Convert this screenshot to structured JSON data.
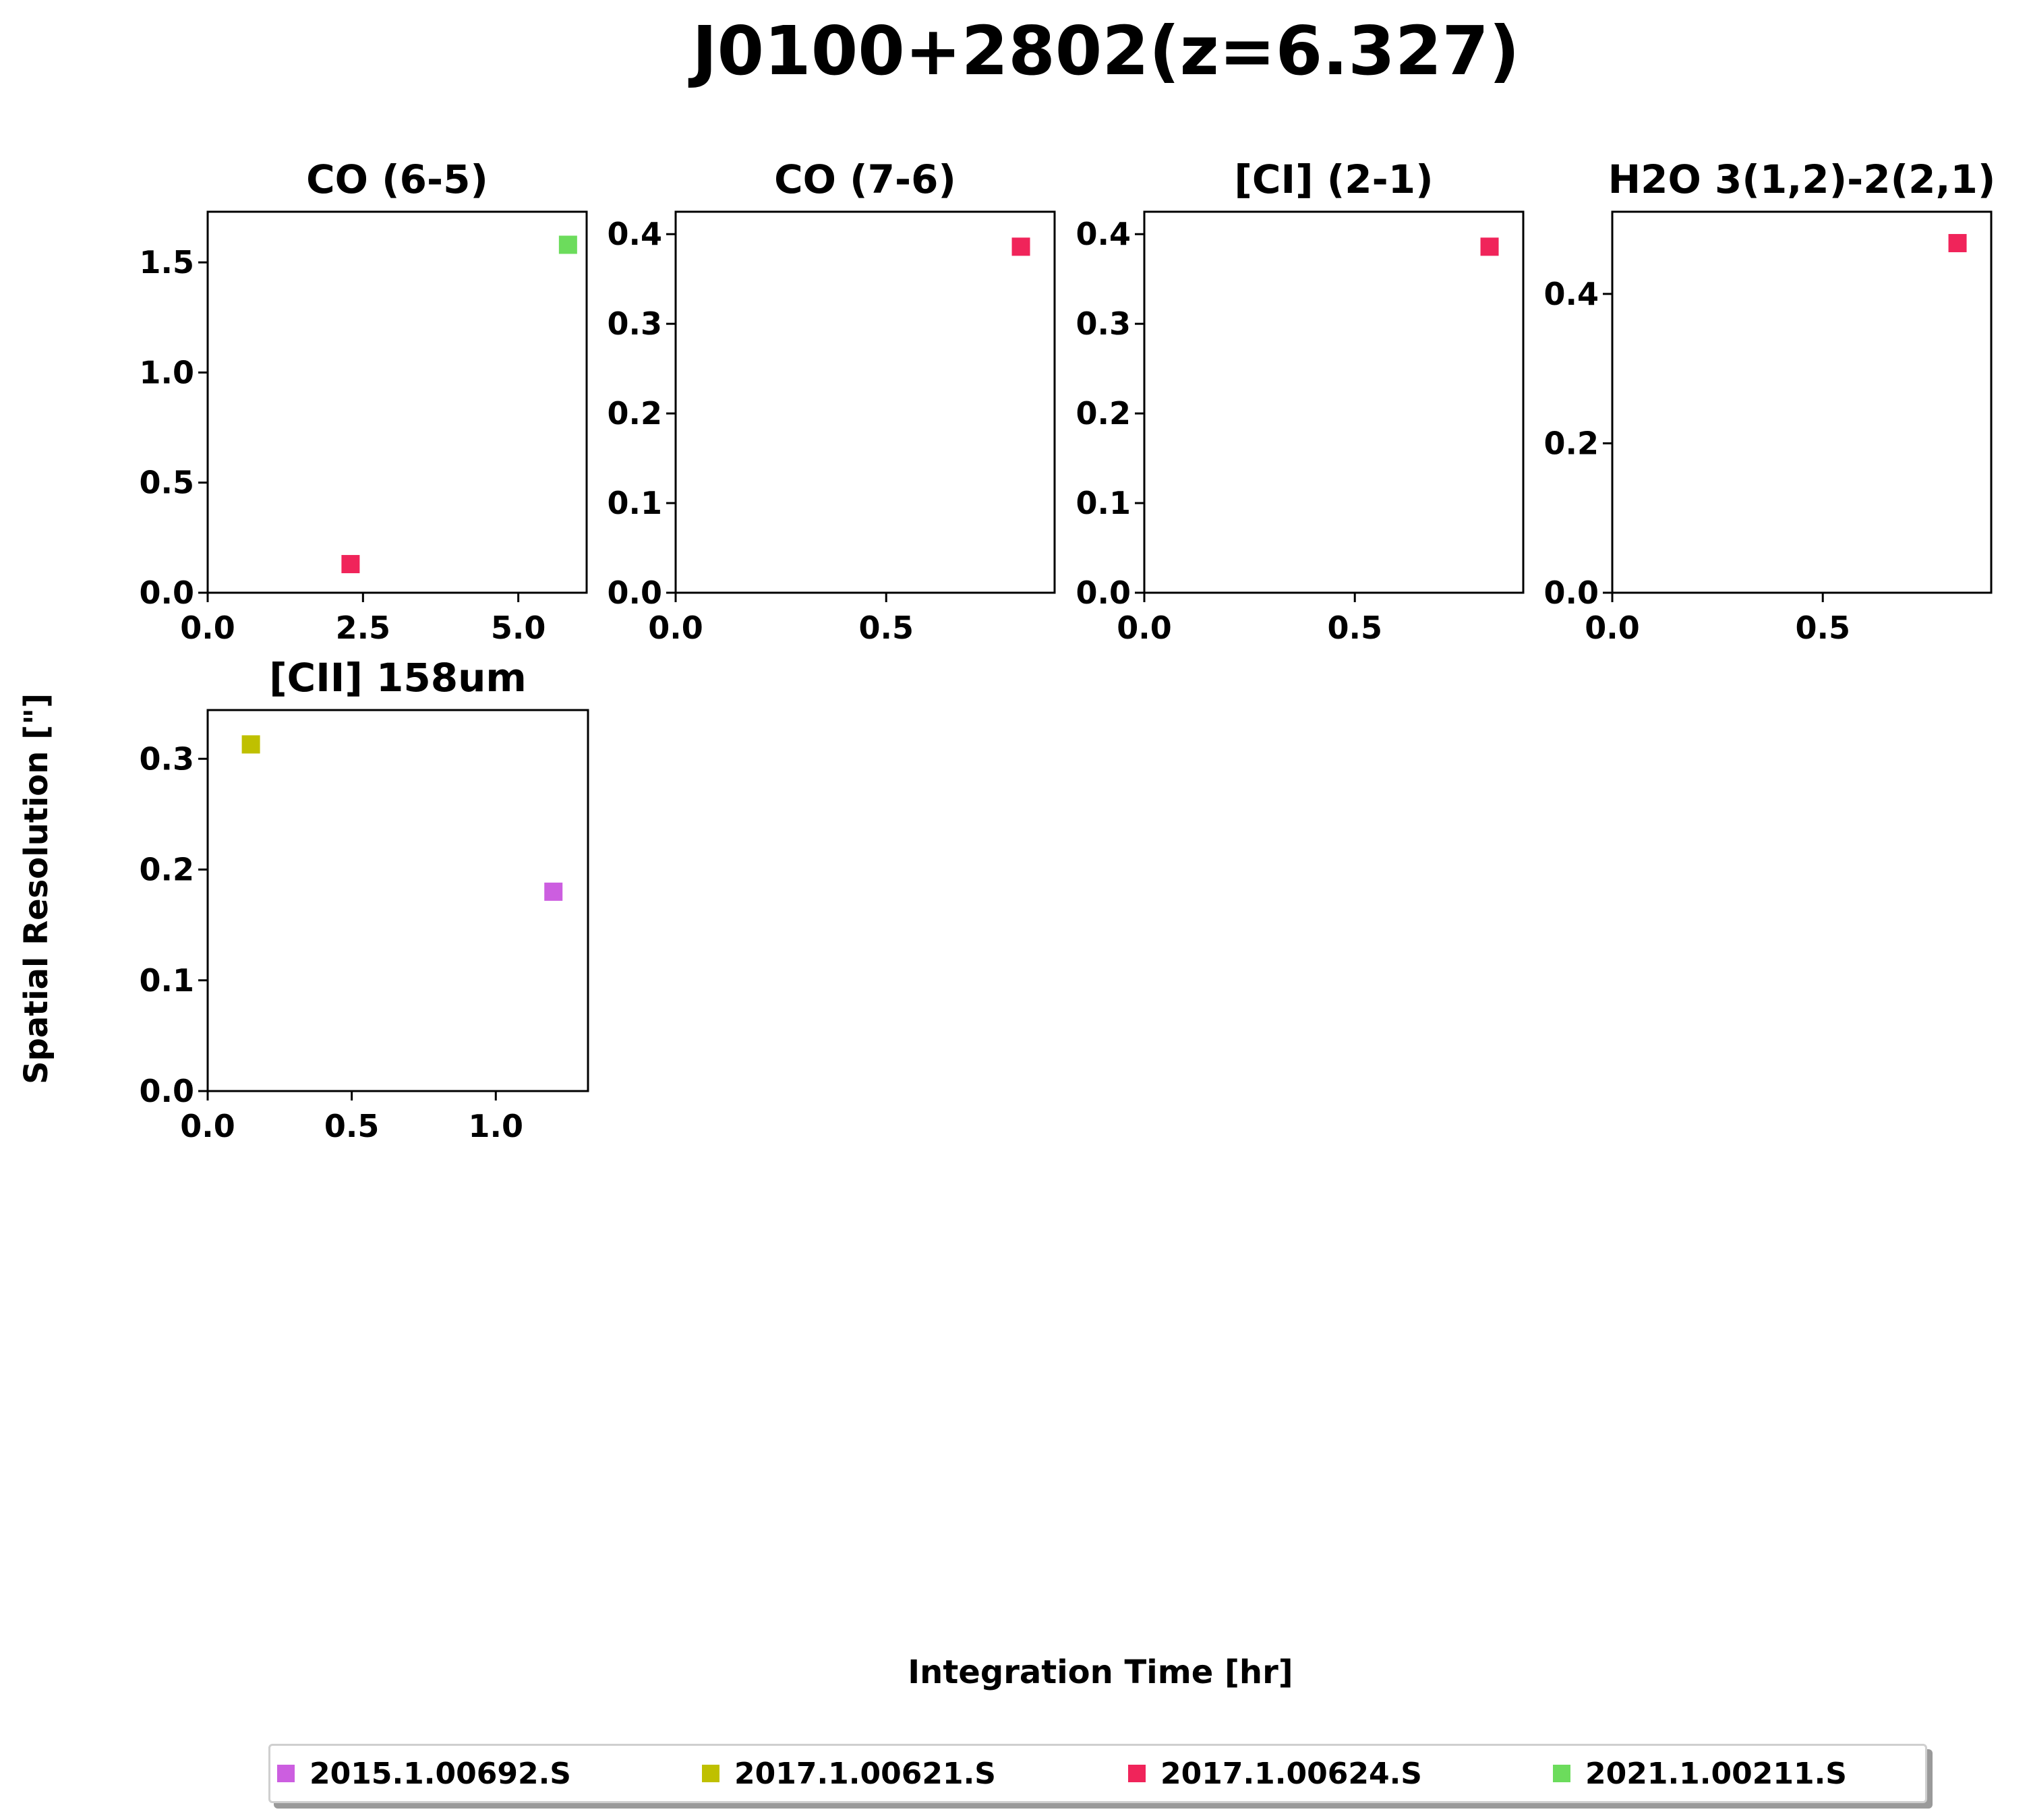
{
  "figure_title": "J0100+2802(z=6.327)",
  "xlabel": "Integration Time [hr]",
  "ylabel": "Spatial Resolution [\"]",
  "legend": [
    {
      "label": "2015.1.00692.S",
      "color": "#cc5ee0"
    },
    {
      "label": "2017.1.00621.S",
      "color": "#bfc000"
    },
    {
      "label": "2017.1.00624.S",
      "color": "#f0245a"
    },
    {
      "label": "2021.1.00211.S",
      "color": "#6cdc5c"
    }
  ],
  "chart_data": [
    {
      "type": "scatter",
      "title": "CO (6-5)",
      "xlim": [
        0,
        6.1
      ],
      "ylim": [
        0,
        1.73
      ],
      "xticks": [
        0,
        2.5,
        5
      ],
      "xtick_labels": [
        "0.0",
        "2.5",
        "5.0"
      ],
      "yticks": [
        0,
        0.5,
        1,
        1.5
      ],
      "ytick_labels": [
        "0.0",
        "0.5",
        "1.0",
        "1.5"
      ],
      "points": [
        {
          "x": 2.3,
          "y": 0.13,
          "project": "2017.1.00624.S"
        },
        {
          "x": 5.8,
          "y": 1.58,
          "project": "2021.1.00211.S"
        }
      ]
    },
    {
      "type": "scatter",
      "title": "CO (7-6)",
      "xlim": [
        0,
        0.9
      ],
      "ylim": [
        0,
        0.425
      ],
      "xticks": [
        0,
        0.5
      ],
      "xtick_labels": [
        "0.0",
        "0.5"
      ],
      "yticks": [
        0,
        0.1,
        0.2,
        0.3,
        0.4
      ],
      "ytick_labels": [
        "0.0",
        "0.1",
        "0.2",
        "0.3",
        "0.4"
      ],
      "points": [
        {
          "x": 0.82,
          "y": 0.386,
          "project": "2017.1.00624.S"
        }
      ]
    },
    {
      "type": "scatter",
      "title": "[CI] (2-1)",
      "xlim": [
        0,
        0.9
      ],
      "ylim": [
        0,
        0.425
      ],
      "xticks": [
        0,
        0.5
      ],
      "xtick_labels": [
        "0.0",
        "0.5"
      ],
      "yticks": [
        0,
        0.1,
        0.2,
        0.3,
        0.4
      ],
      "ytick_labels": [
        "0.0",
        "0.1",
        "0.2",
        "0.3",
        "0.4"
      ],
      "points": [
        {
          "x": 0.82,
          "y": 0.386,
          "project": "2017.1.00624.S"
        }
      ]
    },
    {
      "type": "scatter",
      "title": "H2O 3(1,2)-2(2,1)",
      "xlim": [
        0,
        0.9
      ],
      "ylim": [
        0,
        0.51
      ],
      "xticks": [
        0,
        0.5
      ],
      "xtick_labels": [
        "0.0",
        "0.5"
      ],
      "yticks": [
        0,
        0.2,
        0.4
      ],
      "ytick_labels": [
        "0.0",
        "0.2",
        "0.4"
      ],
      "points": [
        {
          "x": 0.82,
          "y": 0.468,
          "project": "2017.1.00624.S"
        }
      ]
    },
    {
      "type": "scatter",
      "title": "[CII] 158um",
      "xlim": [
        0,
        1.32
      ],
      "ylim": [
        0,
        0.344
      ],
      "xticks": [
        0,
        0.5,
        1
      ],
      "xtick_labels": [
        "0.0",
        "0.5",
        "1.0"
      ],
      "yticks": [
        0,
        0.1,
        0.2,
        0.3
      ],
      "ytick_labels": [
        "0.0",
        "0.1",
        "0.2",
        "0.3"
      ],
      "points": [
        {
          "x": 0.15,
          "y": 0.313,
          "project": "2017.1.00621.S"
        },
        {
          "x": 1.2,
          "y": 0.18,
          "project": "2015.1.00692.S"
        }
      ]
    }
  ]
}
